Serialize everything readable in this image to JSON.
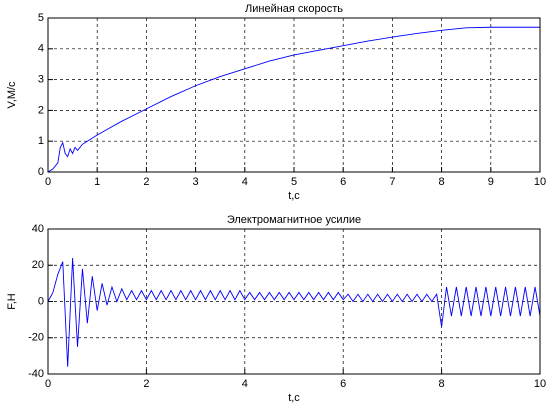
{
  "chart_data": [
    {
      "type": "line",
      "title": "Линейная скорость",
      "xlabel": "t,c",
      "ylabel": "V,M/c",
      "x": [
        0,
        0.1,
        0.2,
        0.25,
        0.3,
        0.35,
        0.4,
        0.45,
        0.5,
        0.55,
        0.6,
        0.7,
        0.8,
        1,
        1.5,
        2,
        2.5,
        3,
        3.5,
        4,
        4.5,
        5,
        5.5,
        6,
        6.5,
        7,
        7.5,
        8,
        8.5,
        9,
        9.5,
        10
      ],
      "values": [
        0,
        0.1,
        0.3,
        0.8,
        0.95,
        0.6,
        0.5,
        0.75,
        0.6,
        0.8,
        0.7,
        0.9,
        1.0,
        1.2,
        1.65,
        2.05,
        2.45,
        2.8,
        3.1,
        3.35,
        3.6,
        3.8,
        3.95,
        4.1,
        4.25,
        4.38,
        4.5,
        4.6,
        4.68,
        4.7,
        4.7,
        4.7
      ],
      "color": "#0000ff",
      "xlim": [
        0,
        10
      ],
      "ylim": [
        0,
        5
      ],
      "xticks": [
        0,
        1,
        2,
        3,
        4,
        5,
        6,
        7,
        8,
        9,
        10
      ],
      "yticks": [
        0,
        1,
        2,
        3,
        4,
        5
      ],
      "grid": true
    },
    {
      "type": "line",
      "title": "Электромагнитное усилие",
      "xlabel": "t,c",
      "ylabel": "F,H",
      "x": [
        0,
        0.1,
        0.2,
        0.3,
        0.4,
        0.5,
        0.6,
        0.7,
        0.8,
        0.9,
        1,
        1.1,
        1.2,
        1.3,
        1.4,
        1.5,
        1.6,
        1.7,
        1.8,
        1.9,
        2,
        2.1,
        2.2,
        2.3,
        2.4,
        2.5,
        2.6,
        2.7,
        2.8,
        2.9,
        3,
        3.1,
        3.2,
        3.3,
        3.4,
        3.5,
        3.6,
        3.7,
        3.8,
        3.9,
        4,
        4.1,
        4.2,
        4.3,
        4.4,
        4.5,
        4.6,
        4.7,
        4.8,
        4.9,
        5,
        5.1,
        5.2,
        5.3,
        5.4,
        5.5,
        5.6,
        5.7,
        5.8,
        5.9,
        6,
        6.1,
        6.2,
        6.3,
        6.4,
        6.5,
        6.6,
        6.7,
        6.8,
        6.9,
        7,
        7.1,
        7.2,
        7.3,
        7.4,
        7.5,
        7.6,
        7.7,
        7.8,
        7.9,
        8,
        8.1,
        8.2,
        8.3,
        8.4,
        8.5,
        8.6,
        8.7,
        8.8,
        8.9,
        9,
        9.1,
        9.2,
        9.3,
        9.4,
        9.5,
        9.6,
        9.7,
        9.8,
        9.9,
        10
      ],
      "values": [
        0,
        5,
        15,
        22,
        -36,
        24,
        -25,
        18,
        -12,
        14,
        -5,
        10,
        -2,
        8,
        0,
        7,
        1,
        6,
        1,
        6,
        1,
        6,
        1,
        6,
        1,
        6,
        1,
        6,
        1,
        6,
        1,
        6,
        1,
        6,
        1,
        6,
        1,
        6,
        1,
        6,
        1,
        5,
        1,
        5,
        1,
        5,
        1,
        5,
        1,
        5,
        1,
        5,
        1,
        5,
        1,
        5,
        1,
        5,
        1,
        5,
        1,
        4,
        0,
        4,
        0,
        4,
        0,
        4,
        0,
        4,
        0,
        4,
        0,
        4,
        0,
        4,
        0,
        4,
        0,
        4,
        -14,
        8,
        -8,
        8,
        -8,
        8,
        -8,
        8,
        -8,
        8,
        -8,
        8,
        -8,
        8,
        -8,
        8,
        -8,
        8,
        -8,
        8,
        -8
      ],
      "color": "#0000ff",
      "xlim": [
        0,
        10
      ],
      "ylim": [
        -40,
        40
      ],
      "xticks": [
        0,
        2,
        4,
        6,
        8,
        10
      ],
      "yticks": [
        -40,
        -20,
        0,
        20,
        40
      ],
      "grid": true
    }
  ]
}
